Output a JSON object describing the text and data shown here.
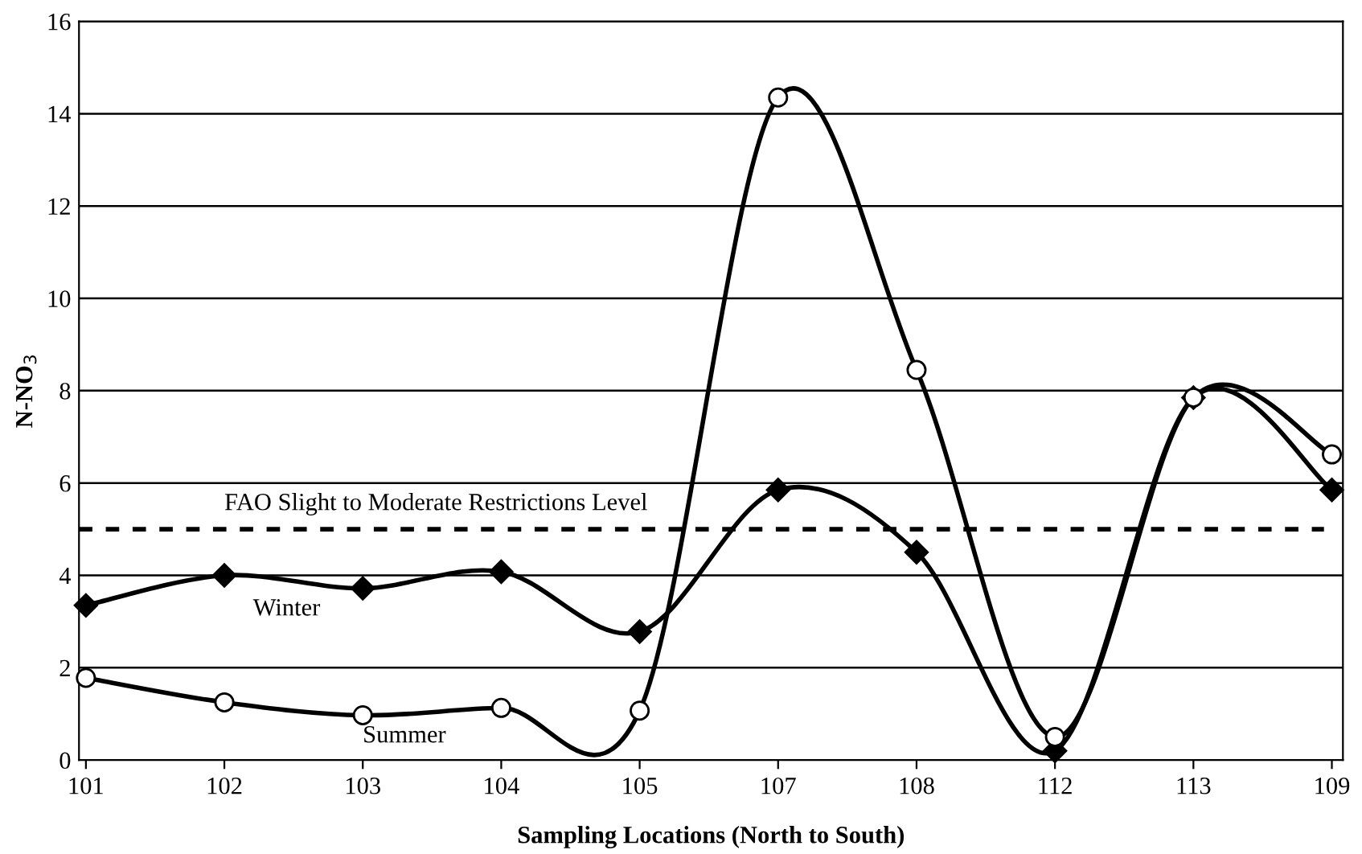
{
  "chart_data": {
    "type": "line",
    "xlabel": "Sampling Locations (North to South)",
    "ylabel": "N-NO$_{3}$",
    "categories": [
      "101",
      "102",
      "103",
      "104",
      "105",
      "107",
      "108",
      "112",
      "113",
      "109"
    ],
    "series": [
      {
        "name": "Winter",
        "color": "#000000",
        "marker": "diamond",
        "values": [
          3.35,
          4.0,
          3.72,
          4.08,
          2.78,
          5.85,
          4.5,
          0.2,
          7.85,
          5.85
        ]
      },
      {
        "name": "Summer",
        "color": "#000000",
        "marker": "circle",
        "values": [
          1.78,
          1.25,
          0.97,
          1.13,
          1.07,
          14.35,
          8.45,
          0.5,
          7.85,
          6.62
        ]
      }
    ],
    "ylim": [
      0,
      16
    ],
    "yticks": [
      0,
      2,
      4,
      6,
      8,
      10,
      12,
      14,
      16
    ],
    "grid": "y",
    "line_style": "solid",
    "ref_lines": [
      {
        "axis": "y",
        "value": 5,
        "label": "FAO Slight to Moderate Restrictions Level",
        "color": "#000000",
        "line_style": "dashed"
      }
    ]
  }
}
